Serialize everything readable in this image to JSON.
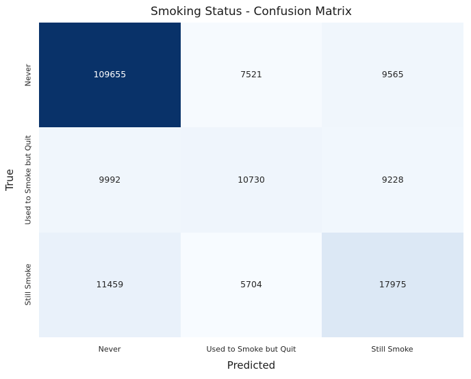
{
  "chart_data": {
    "type": "heatmap",
    "title": "Smoking Status - Confusion Matrix",
    "xlabel": "Predicted",
    "ylabel": "True",
    "categories": [
      "Never",
      "Used to Smoke but Quit",
      "Still Smoke"
    ],
    "rows": [
      {
        "label": "Never",
        "values": [
          109655,
          7521,
          9565
        ]
      },
      {
        "label": "Used to Smoke but Quit",
        "values": [
          9992,
          10730,
          9228
        ]
      },
      {
        "label": "Still Smoke",
        "values": [
          11459,
          5704,
          17975
        ]
      }
    ],
    "colormap": "Blues",
    "vmin": 5704,
    "vmax": 109655,
    "colorbar": false,
    "grid": false,
    "legend_position": "none",
    "colors": {
      "max_cell": "#093269",
      "annotation_on_dark": "#ffffff",
      "annotation_on_light": "#262626"
    },
    "cell_colors": [
      [
        "#093269",
        "#f6fafe",
        "#f0f6fc"
      ],
      [
        "#f0f6fc",
        "#eff5fc",
        "#f1f7fd"
      ],
      [
        "#e9f1fa",
        "#f7fbff",
        "#dce8f5"
      ]
    ],
    "text_colors": [
      [
        "#ffffff",
        "#262626",
        "#262626"
      ],
      [
        "#262626",
        "#262626",
        "#262626"
      ],
      [
        "#262626",
        "#262626",
        "#262626"
      ]
    ]
  }
}
